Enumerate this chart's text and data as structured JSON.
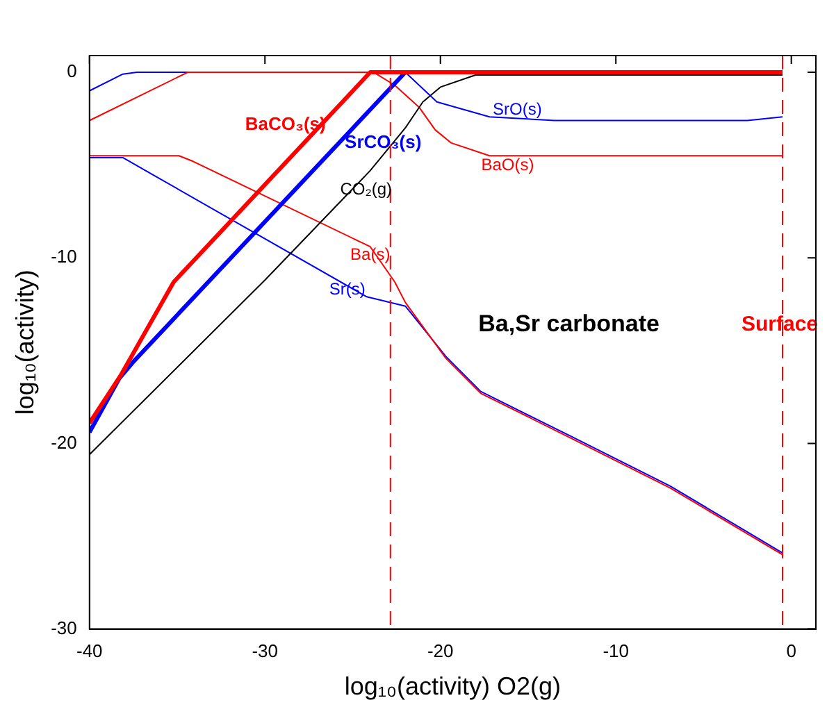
{
  "chart_data": {
    "type": "line",
    "xlabel": "log₁₀(activity) O2(g)",
    "ylabel": "log₁₀(activity)",
    "xlim": [
      -40,
      1.4
    ],
    "ylim": [
      -30,
      0.9
    ],
    "xticks": [
      -40,
      -30,
      -20,
      -10,
      0
    ],
    "yticks": [
      -30,
      -20,
      -10,
      0
    ],
    "grid": false,
    "legend": false,
    "marker": "none",
    "line_style": "solid",
    "annotations": [
      "Ba,Sr carbonate"
    ],
    "ref_lines": [
      {
        "axis": "x",
        "value": -22.85,
        "color": "#ff0000",
        "line_style": "dashed"
      },
      {
        "axis": "x",
        "value": -0.5,
        "label": "Surface",
        "color": "#ff0000",
        "line_style": "dashed"
      }
    ],
    "series": [
      {
        "name": "BaCO₃(s)",
        "color": "#ff0000",
        "x": [
          -40,
          -38.2,
          -35.2,
          -24,
          -0.5
        ],
        "values": [
          -18.9,
          -16.3,
          -11.3,
          0,
          0
        ]
      },
      {
        "name": "SrCO₃(s)",
        "color": "#0000ff",
        "x": [
          -40,
          -38.3,
          -37.5,
          -22,
          -21
        ],
        "values": [
          -19.4,
          -16.5,
          -15.6,
          0,
          0
        ]
      },
      {
        "name": "CO₂(g)",
        "color": "#000000",
        "x": [
          -40,
          -30,
          -24,
          -22,
          -21,
          -20,
          -18,
          -0.5
        ],
        "values": [
          -20.6,
          -11.2,
          -5.3,
          -3,
          -1.6,
          -0.8,
          -0.15,
          -0.15
        ]
      },
      {
        "name": "BaO(s)",
        "color": "#ff0000",
        "x": [
          -40,
          -34.4,
          -23.8,
          -22.6,
          -21.2,
          -20.3,
          -19.4,
          -17.2,
          -0.5
        ],
        "values": [
          -2.6,
          0,
          0,
          -0.7,
          -1.9,
          -3.1,
          -3.8,
          -4.5,
          -4.5
        ]
      },
      {
        "name": "SrO(s)",
        "color": "#0000ff",
        "x": [
          -40,
          -38.1,
          -37.3,
          -22,
          -20.2,
          -17.2,
          -13.5,
          -2.5,
          -0.5
        ],
        "values": [
          -1,
          -0.1,
          0,
          0,
          -1.6,
          -2.4,
          -2.6,
          -2.6,
          -2.4
        ]
      },
      {
        "name": "Ba(s)",
        "color": "#ff0000",
        "x": [
          -40,
          -34.9,
          -34.1,
          -24,
          -22.6,
          -22,
          -19.7,
          -17.7,
          -12.6,
          -6.9,
          -0.5
        ],
        "values": [
          -4.5,
          -4.5,
          -4.8,
          -9.4,
          -11.3,
          -12.4,
          -15.4,
          -17.3,
          -19.7,
          -22.4,
          -26
        ]
      },
      {
        "name": "Sr(s)",
        "color": "#0000ff",
        "x": [
          -40,
          -38.1,
          -24.2,
          -22,
          -19.7,
          -17.7,
          -12.6,
          -6.9,
          -0.5
        ],
        "values": [
          -4.6,
          -4.6,
          -12.1,
          -12.6,
          -15.3,
          -17.2,
          -19.6,
          -22.3,
          -25.9
        ]
      }
    ]
  }
}
